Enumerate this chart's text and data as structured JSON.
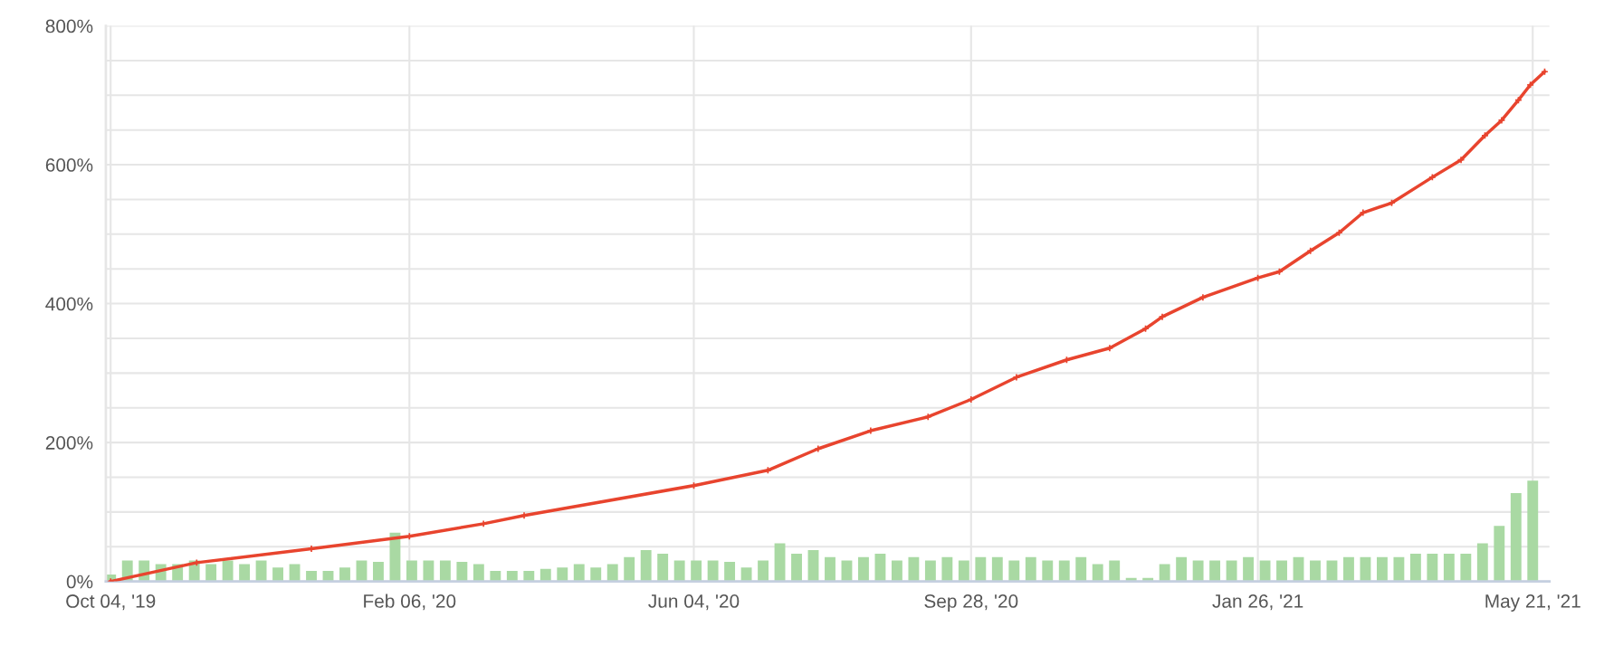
{
  "chart_data": {
    "type": "line",
    "marker": "cross",
    "grid": true,
    "legend": false,
    "xlim": [
      "2019-10-02",
      "2021-05-28"
    ],
    "xticks": [
      {
        "value": "2019-10-04",
        "label": "Oct 04, '19"
      },
      {
        "value": "2020-02-06",
        "label": "Feb 06, '20"
      },
      {
        "value": "2020-06-04",
        "label": "Jun 04, '20"
      },
      {
        "value": "2020-09-28",
        "label": "Sep 28, '20"
      },
      {
        "value": "2021-01-26",
        "label": "Jan 26, '21"
      },
      {
        "value": "2021-05-21",
        "label": "May 21, '21"
      }
    ],
    "ylim": [
      0,
      800
    ],
    "yticks": [
      {
        "value": 0,
        "label": "0%"
      },
      {
        "value": 50,
        "label": null
      },
      {
        "value": 100,
        "label": null
      },
      {
        "value": 150,
        "label": null
      },
      {
        "value": 200,
        "label": "200%"
      },
      {
        "value": 250,
        "label": null
      },
      {
        "value": 300,
        "label": null
      },
      {
        "value": 350,
        "label": null
      },
      {
        "value": 400,
        "label": "400%"
      },
      {
        "value": 450,
        "label": null
      },
      {
        "value": 500,
        "label": null
      },
      {
        "value": 550,
        "label": null
      },
      {
        "value": 600,
        "label": "600%"
      },
      {
        "value": 650,
        "label": null
      },
      {
        "value": 700,
        "label": null
      },
      {
        "value": 750,
        "label": null
      },
      {
        "value": 800,
        "label": "800%"
      }
    ],
    "series": [
      {
        "type": "bar",
        "color": "#a9d9a3",
        "x": [
          "2019-10-04",
          "2019-10-11",
          "2019-10-18",
          "2019-10-25",
          "2019-11-01",
          "2019-11-08",
          "2019-11-15",
          "2019-11-22",
          "2019-11-29",
          "2019-12-06",
          "2019-12-13",
          "2019-12-20",
          "2019-12-27",
          "2020-01-03",
          "2020-01-10",
          "2020-01-17",
          "2020-01-24",
          "2020-01-31",
          "2020-02-07",
          "2020-02-14",
          "2020-02-21",
          "2020-02-28",
          "2020-03-06",
          "2020-03-13",
          "2020-03-20",
          "2020-03-27",
          "2020-04-03",
          "2020-04-10",
          "2020-04-17",
          "2020-04-24",
          "2020-05-01",
          "2020-05-08",
          "2020-05-15",
          "2020-05-22",
          "2020-05-29",
          "2020-06-05",
          "2020-06-12",
          "2020-06-19",
          "2020-06-26",
          "2020-07-03",
          "2020-07-10",
          "2020-07-17",
          "2020-07-24",
          "2020-07-31",
          "2020-08-07",
          "2020-08-14",
          "2020-08-21",
          "2020-08-28",
          "2020-09-04",
          "2020-09-11",
          "2020-09-18",
          "2020-09-25",
          "2020-10-02",
          "2020-10-09",
          "2020-10-16",
          "2020-10-23",
          "2020-10-30",
          "2020-11-06",
          "2020-11-13",
          "2020-11-20",
          "2020-11-27",
          "2020-12-04",
          "2020-12-11",
          "2020-12-18",
          "2020-12-25",
          "2021-01-01",
          "2021-01-08",
          "2021-01-15",
          "2021-01-22",
          "2021-01-29",
          "2021-02-05",
          "2021-02-12",
          "2021-02-19",
          "2021-02-26",
          "2021-03-05",
          "2021-03-12",
          "2021-03-19",
          "2021-03-26",
          "2021-04-02",
          "2021-04-09",
          "2021-04-16",
          "2021-04-23",
          "2021-04-30",
          "2021-05-07",
          "2021-05-14",
          "2021-05-21"
        ],
        "values": [
          10,
          30,
          30,
          25,
          25,
          30,
          25,
          30,
          25,
          30,
          20,
          25,
          15,
          15,
          20,
          30,
          28,
          70,
          30,
          30,
          30,
          28,
          25,
          15,
          15,
          15,
          18,
          20,
          25,
          20,
          25,
          35,
          45,
          40,
          30,
          30,
          30,
          28,
          20,
          30,
          55,
          40,
          45,
          35,
          30,
          35,
          40,
          30,
          35,
          30,
          35,
          30,
          35,
          35,
          30,
          35,
          30,
          30,
          35,
          25,
          30,
          5,
          5,
          25,
          35,
          30,
          30,
          30,
          35,
          30,
          30,
          35,
          30,
          30,
          35,
          35,
          35,
          35,
          40,
          40,
          40,
          40,
          55,
          80,
          127,
          145
        ]
      },
      {
        "color": "#e8442e",
        "x": [
          "2019-10-04",
          "2019-11-09",
          "2019-12-27",
          "2020-02-06",
          "2020-03-08",
          "2020-03-25",
          "2020-06-04",
          "2020-07-05",
          "2020-07-26",
          "2020-08-17",
          "2020-09-10",
          "2020-09-28",
          "2020-10-17",
          "2020-11-07",
          "2020-11-25",
          "2020-12-10",
          "2020-12-17",
          "2021-01-03",
          "2021-01-26",
          "2021-02-04",
          "2021-02-17",
          "2021-03-01",
          "2021-03-11",
          "2021-03-23",
          "2021-04-09",
          "2021-04-21",
          "2021-05-01",
          "2021-05-08",
          "2021-05-15",
          "2021-05-20",
          "2021-05-26"
        ],
        "values": [
          0,
          27,
          47,
          65,
          83,
          95,
          138,
          160,
          191,
          217,
          237,
          262,
          294,
          319,
          336,
          364,
          381,
          409,
          437,
          446,
          476,
          502,
          531,
          545,
          582,
          607,
          642,
          664,
          693,
          715,
          734
        ]
      }
    ]
  }
}
